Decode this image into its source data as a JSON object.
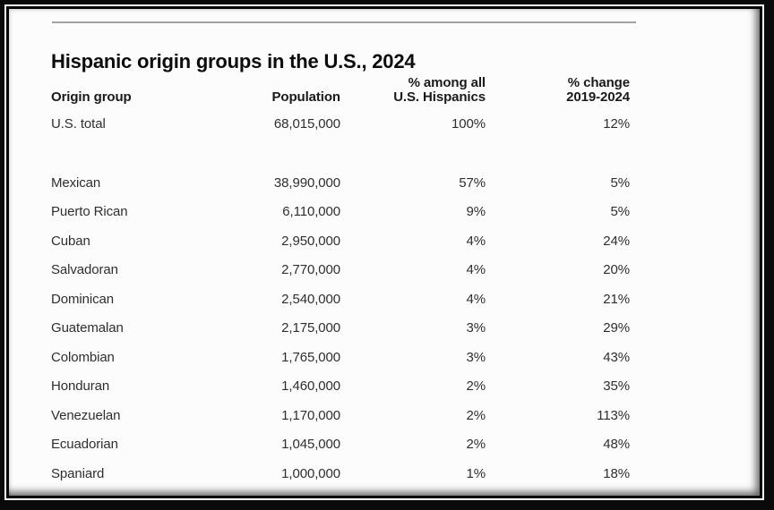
{
  "colors": {
    "frame_black": "#0a0a0a",
    "frame_white_line": "#ffffff",
    "content_background": "#fcfcfc",
    "top_rule_gray": "#a3a3a3",
    "title_text": "#0c0c0c",
    "header_text": "#1a1a1a",
    "body_text": "#2f2f2f"
  },
  "chart_data": {
    "type": "table",
    "title": "Hispanic origin groups in the U.S., 2024",
    "columns": [
      "Origin group",
      "Population",
      "% among all U.S. Hispanics",
      "% change 2019-2024"
    ],
    "header": {
      "origin": "Origin group",
      "population": "Population",
      "share_line1": "% among all",
      "share_line2": "U.S. Hispanics",
      "change_line1": "% change",
      "change_line2": "2019-2024"
    },
    "total": {
      "origin": "U.S. total",
      "population": 68015000,
      "population_label": "68,015,000",
      "share_pct": 100,
      "share_label": "100%",
      "change_pct": 12,
      "change_label": "12%"
    },
    "rows": [
      {
        "origin": "Mexican",
        "population": 38990000,
        "population_label": "38,990,000",
        "share_pct": 57,
        "share_label": "57%",
        "change_pct": 5,
        "change_label": "5%"
      },
      {
        "origin": "Puerto Rican",
        "population": 6110000,
        "population_label": "6,110,000",
        "share_pct": 9,
        "share_label": "9%",
        "change_pct": 5,
        "change_label": "5%"
      },
      {
        "origin": "Cuban",
        "population": 2950000,
        "population_label": "2,950,000",
        "share_pct": 4,
        "share_label": "4%",
        "change_pct": 24,
        "change_label": "24%"
      },
      {
        "origin": "Salvadoran",
        "population": 2770000,
        "population_label": "2,770,000",
        "share_pct": 4,
        "share_label": "4%",
        "change_pct": 20,
        "change_label": "20%"
      },
      {
        "origin": "Dominican",
        "population": 2540000,
        "population_label": "2,540,000",
        "share_pct": 4,
        "share_label": "4%",
        "change_pct": 21,
        "change_label": "21%"
      },
      {
        "origin": "Guatemalan",
        "population": 2175000,
        "population_label": "2,175,000",
        "share_pct": 3,
        "share_label": "3%",
        "change_pct": 29,
        "change_label": "29%"
      },
      {
        "origin": "Colombian",
        "population": 1765000,
        "population_label": "1,765,000",
        "share_pct": 3,
        "share_label": "3%",
        "change_pct": 43,
        "change_label": "43%"
      },
      {
        "origin": "Honduran",
        "population": 1460000,
        "population_label": "1,460,000",
        "share_pct": 2,
        "share_label": "2%",
        "change_pct": 35,
        "change_label": "35%"
      },
      {
        "origin": "Venezuelan",
        "population": 1170000,
        "population_label": "1,170,000",
        "share_pct": 2,
        "share_label": "2%",
        "change_pct": 113,
        "change_label": "113%"
      },
      {
        "origin": "Ecuadorian",
        "population": 1045000,
        "population_label": "1,045,000",
        "share_pct": 2,
        "share_label": "2%",
        "change_pct": 48,
        "change_label": "48%"
      },
      {
        "origin": "Spaniard",
        "population": 1000000,
        "population_label": "1,000,000",
        "share_pct": 1,
        "share_label": "1%",
        "change_pct": 18,
        "change_label": "18%"
      }
    ]
  }
}
